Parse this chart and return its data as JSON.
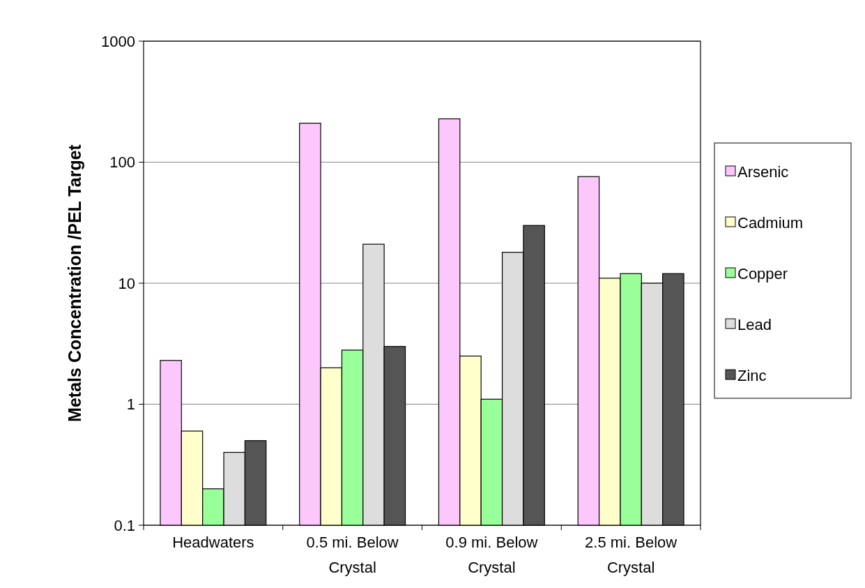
{
  "chart_data": {
    "type": "bar",
    "ylabel": "Metals Concentration /PEL Target",
    "categories": [
      "Headwaters",
      "0.5 mi. Below Crystal",
      "0.9 mi. Below Crystal",
      "2.5 mi. Below Crystal"
    ],
    "series": [
      {
        "name": "Arsenic",
        "color": "#fcc8fc",
        "values": [
          2.3,
          210,
          228,
          76
        ]
      },
      {
        "name": "Cadmium",
        "color": "#ffffcc",
        "values": [
          0.6,
          2.0,
          2.5,
          11
        ]
      },
      {
        "name": "Copper",
        "color": "#99ff99",
        "values": [
          0.2,
          2.8,
          1.1,
          12
        ]
      },
      {
        "name": "Lead",
        "color": "#dddddd",
        "values": [
          0.4,
          21,
          18,
          10
        ]
      },
      {
        "name": "Zinc",
        "color": "#555555",
        "values": [
          0.5,
          3.0,
          30,
          12
        ]
      }
    ],
    "log": "y",
    "ylim": [
      0.1,
      1000
    ],
    "yticks": [
      0.1,
      1,
      10,
      100,
      1000
    ],
    "grid": "y",
    "legend": "right"
  }
}
